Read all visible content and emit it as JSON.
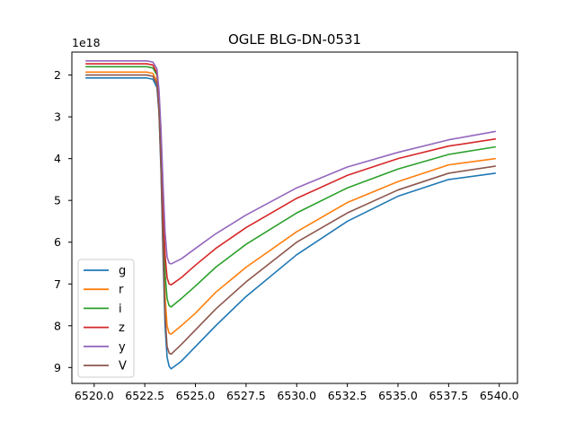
{
  "chart_data": {
    "type": "line",
    "title": "OGLE BLG-DN-0531",
    "xlabel": "",
    "ylabel": "",
    "y_offset_label": "1e18",
    "xlim": [
      6518.9,
      6540.9
    ],
    "ylim": [
      9.38,
      1.45
    ],
    "y_inverted": true,
    "grid": false,
    "legend_position": "lower-left",
    "x_ticks": [
      6520.0,
      6522.5,
      6525.0,
      6527.5,
      6530.0,
      6532.5,
      6535.0,
      6537.5,
      6540.0
    ],
    "x_tick_labels": [
      "6520.0",
      "6522.5",
      "6525.0",
      "6527.5",
      "6530.0",
      "6532.5",
      "6535.0",
      "6537.5",
      "6540.0"
    ],
    "y_ticks": [
      2,
      3,
      4,
      5,
      6,
      7,
      8,
      9
    ],
    "y_tick_labels": [
      "2",
      "3",
      "4",
      "5",
      "6",
      "7",
      "8",
      "9"
    ],
    "series": [
      {
        "name": "g",
        "color": "#1f77b4",
        "x": [
          6519.6,
          6522.6,
          6522.9,
          6523.1,
          6523.2,
          6523.3,
          6523.4,
          6523.5,
          6523.6,
          6523.7,
          6523.8,
          6524.3,
          6525.0,
          6526.0,
          6527.5,
          6530.0,
          6532.5,
          6535.0,
          6537.5,
          6539.8
        ],
        "y": [
          2.07,
          2.07,
          2.1,
          2.3,
          2.9,
          4.3,
          6.3,
          8.0,
          8.75,
          8.97,
          9.03,
          8.85,
          8.5,
          8.0,
          7.3,
          6.3,
          5.5,
          4.9,
          4.5,
          4.35
        ]
      },
      {
        "name": "r",
        "color": "#ff7f0e",
        "x": [
          6519.6,
          6522.6,
          6522.9,
          6523.1,
          6523.2,
          6523.3,
          6523.4,
          6523.5,
          6523.6,
          6523.7,
          6523.8,
          6524.3,
          6525.0,
          6526.0,
          6527.5,
          6530.0,
          6532.5,
          6535.0,
          6537.5,
          6539.8
        ],
        "y": [
          1.93,
          1.93,
          1.96,
          2.15,
          2.75,
          4.0,
          5.8,
          7.3,
          8.0,
          8.18,
          8.2,
          8.0,
          7.7,
          7.2,
          6.6,
          5.75,
          5.05,
          4.55,
          4.15,
          4.0
        ]
      },
      {
        "name": "i",
        "color": "#2ca02c",
        "x": [
          6519.6,
          6522.6,
          6522.9,
          6523.1,
          6523.2,
          6523.3,
          6523.4,
          6523.5,
          6523.6,
          6523.7,
          6523.8,
          6524.3,
          6525.0,
          6526.0,
          6527.5,
          6530.0,
          6532.5,
          6535.0,
          6537.5,
          6539.8
        ],
        "y": [
          1.8,
          1.8,
          1.83,
          2.0,
          2.6,
          3.8,
          5.4,
          6.75,
          7.35,
          7.52,
          7.55,
          7.35,
          7.05,
          6.6,
          6.05,
          5.3,
          4.7,
          4.25,
          3.9,
          3.72
        ]
      },
      {
        "name": "z",
        "color": "#d62728",
        "x": [
          6519.6,
          6522.6,
          6522.9,
          6523.1,
          6523.2,
          6523.3,
          6523.4,
          6523.5,
          6523.6,
          6523.7,
          6523.8,
          6524.3,
          6525.0,
          6526.0,
          6527.5,
          6530.0,
          6532.5,
          6535.0,
          6537.5,
          6539.8
        ],
        "y": [
          1.73,
          1.73,
          1.76,
          1.95,
          2.5,
          3.6,
          5.1,
          6.3,
          6.85,
          7.0,
          7.02,
          6.85,
          6.55,
          6.15,
          5.65,
          4.95,
          4.4,
          4.0,
          3.7,
          3.53
        ]
      },
      {
        "name": "y",
        "color": "#9467bd",
        "x": [
          6519.6,
          6522.6,
          6522.9,
          6523.1,
          6523.2,
          6523.3,
          6523.4,
          6523.5,
          6523.6,
          6523.7,
          6523.8,
          6524.3,
          6525.0,
          6526.0,
          6527.5,
          6530.0,
          6532.5,
          6535.0,
          6537.5,
          6539.8
        ],
        "y": [
          1.66,
          1.66,
          1.69,
          1.85,
          2.35,
          3.3,
          4.6,
          5.75,
          6.35,
          6.5,
          6.52,
          6.4,
          6.15,
          5.8,
          5.35,
          4.7,
          4.2,
          3.85,
          3.55,
          3.35
        ]
      },
      {
        "name": "V",
        "color": "#8c564b",
        "x": [
          6519.6,
          6522.6,
          6522.9,
          6523.1,
          6523.2,
          6523.3,
          6523.4,
          6523.5,
          6523.6,
          6523.7,
          6523.8,
          6524.3,
          6525.0,
          6526.0,
          6527.5,
          6530.0,
          6532.5,
          6535.0,
          6537.5,
          6539.8
        ],
        "y": [
          2.0,
          2.0,
          2.03,
          2.22,
          2.85,
          4.2,
          6.1,
          7.75,
          8.5,
          8.65,
          8.68,
          8.45,
          8.1,
          7.6,
          6.95,
          6.0,
          5.3,
          4.75,
          4.35,
          4.18
        ]
      }
    ]
  }
}
